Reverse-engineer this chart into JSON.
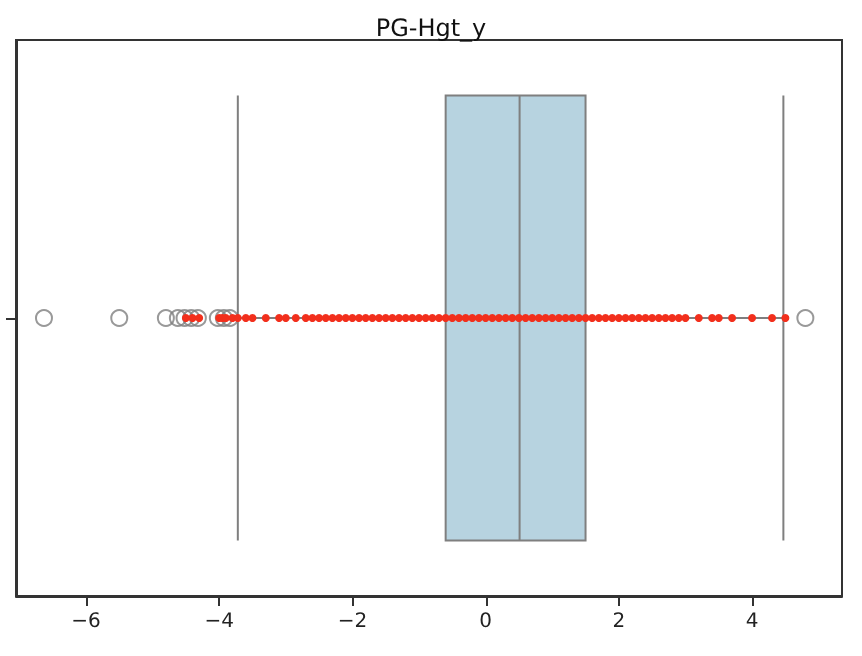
{
  "chart_data": {
    "type": "box",
    "title": "PG-Hgt_y",
    "orientation": "horizontal",
    "categories": [
      null
    ],
    "tick_labels": "x",
    "grid": false,
    "xlim": [
      -7.05,
      5.35
    ],
    "xticks": [
      -6,
      -4,
      -2,
      0,
      2,
      4
    ],
    "series": [
      {
        "color": "#b7d3e0",
        "boxes": [
          {
            "low": -3.72,
            "q1": -0.6,
            "median": 0.51,
            "q3": 1.5,
            "high": 4.47,
            "outliers": [
              -6.63,
              -5.5,
              -4.8,
              -4.62,
              -4.52,
              -4.42,
              -4.32,
              -4.02,
              -3.93,
              -3.84,
              4.8
            ]
          }
        ]
      },
      {
        "type": "scatter",
        "color": "#f22f1c",
        "marker": "circle",
        "x": [
          null,
          null,
          null,
          null,
          null,
          null,
          null,
          null,
          null,
          null,
          null,
          null,
          null,
          null,
          null,
          null,
          null,
          null,
          null,
          null,
          null,
          null,
          null,
          null,
          null,
          null,
          null,
          null,
          null,
          null,
          null,
          null,
          null,
          null,
          null,
          null,
          null,
          null,
          null,
          null,
          null,
          null,
          null,
          null,
          null,
          null,
          null,
          null,
          null,
          null,
          null,
          null,
          null,
          null,
          null,
          null,
          null,
          null,
          null,
          null,
          null,
          null,
          null,
          null,
          null,
          null,
          null,
          null,
          null,
          null,
          null,
          null,
          null,
          null,
          null,
          null,
          null,
          null,
          null
        ],
        "values": [
          -4.5,
          -4.4,
          -4.3,
          -4.0,
          -3.95,
          -3.9,
          -3.8,
          -3.72,
          -3.6,
          -3.5,
          -3.3,
          -3.1,
          -3.0,
          -2.85,
          -2.7,
          -2.6,
          -2.5,
          -2.4,
          -2.3,
          -2.2,
          -2.1,
          -2.0,
          -1.9,
          -1.8,
          -1.7,
          -1.6,
          -1.5,
          -1.4,
          -1.3,
          -1.2,
          -1.1,
          -1.0,
          -0.9,
          -0.8,
          -0.7,
          -0.6,
          -0.5,
          -0.4,
          -0.3,
          -0.2,
          -0.1,
          0,
          0.1,
          0.2,
          0.3,
          0.4,
          0.5,
          0.6,
          0.7,
          0.8,
          0.9,
          1.0,
          1.1,
          1.2,
          1.3,
          1.4,
          1.5,
          1.6,
          1.7,
          1.8,
          1.9,
          2.0,
          2.1,
          2.2,
          2.3,
          2.4,
          2.5,
          2.6,
          2.7,
          2.8,
          2.9,
          3.0,
          3.2,
          3.4,
          3.5,
          3.7,
          4.0,
          4.3,
          4.5
        ]
      }
    ]
  }
}
